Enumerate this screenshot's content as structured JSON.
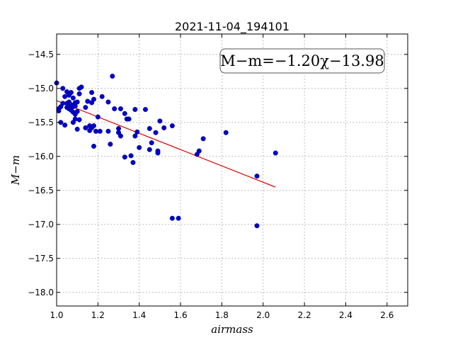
{
  "chart_data": {
    "type": "scatter",
    "title": "2021-11-04_194101",
    "xlabel": "airmass",
    "ylabel": "M−m",
    "xlim": [
      1.0,
      2.7
    ],
    "ylim": [
      -18.2,
      -14.2
    ],
    "y_inverted": true,
    "grid": true,
    "x_ticks": [
      1.0,
      1.2,
      1.4,
      1.6,
      1.8,
      2.0,
      2.2,
      2.4,
      2.6
    ],
    "x_tick_labels": [
      "1.0",
      "1.2",
      "1.4",
      "1.6",
      "1.8",
      "2.0",
      "2.2",
      "2.4",
      "2.6"
    ],
    "y_ticks": [
      -14.5,
      -15.0,
      -15.5,
      -16.0,
      -16.5,
      -17.0,
      -17.5,
      -18.0
    ],
    "y_tick_labels": [
      "−14.5",
      "−15.0",
      "−15.5",
      "−16.0",
      "−16.5",
      "−17.0",
      "−17.5",
      "−18.0"
    ],
    "annotation": "M−m=−1.20χ−13.98",
    "point_color": "#0000cc",
    "fit_color": "#dd0000",
    "points": {
      "x": [
        1.0,
        1.01,
        1.01,
        1.02,
        1.02,
        1.03,
        1.03,
        1.04,
        1.04,
        1.05,
        1.05,
        1.05,
        1.06,
        1.06,
        1.06,
        1.07,
        1.07,
        1.07,
        1.08,
        1.08,
        1.08,
        1.08,
        1.09,
        1.09,
        1.09,
        1.09,
        1.1,
        1.1,
        1.1,
        1.11,
        1.11,
        1.11,
        1.12,
        1.14,
        1.14,
        1.15,
        1.16,
        1.16,
        1.17,
        1.17,
        1.17,
        1.18,
        1.18,
        1.18,
        1.19,
        1.2,
        1.21,
        1.22,
        1.25,
        1.25,
        1.26,
        1.27,
        1.28,
        1.3,
        1.3,
        1.31,
        1.31,
        1.33,
        1.33,
        1.34,
        1.35,
        1.36,
        1.37,
        1.38,
        1.38,
        1.39,
        1.4,
        1.43,
        1.45,
        1.45,
        1.46,
        1.48,
        1.49,
        1.49,
        1.5,
        1.52,
        1.56,
        1.56,
        1.59,
        1.68,
        1.69,
        1.71,
        1.82,
        1.97,
        1.97,
        2.06
      ],
      "y": [
        -14.92,
        -15.3,
        -15.33,
        -15.27,
        -15.5,
        -15.0,
        -15.22,
        -15.12,
        -15.54,
        -15.05,
        -15.22,
        -15.28,
        -15.1,
        -15.2,
        -15.3,
        -15.06,
        -15.24,
        -15.32,
        -15.14,
        -15.27,
        -15.35,
        -15.5,
        -15.21,
        -15.26,
        -15.38,
        -15.45,
        -15.2,
        -15.34,
        -15.6,
        -15.0,
        -15.08,
        -15.46,
        -14.98,
        -15.28,
        -15.58,
        -15.19,
        -15.55,
        -15.62,
        -15.06,
        -15.21,
        -15.58,
        -15.16,
        -15.55,
        -15.85,
        -15.63,
        -15.42,
        -15.63,
        -15.12,
        -15.2,
        -15.63,
        -15.82,
        -14.82,
        -15.3,
        -15.59,
        -15.65,
        -15.3,
        -15.7,
        -15.37,
        -16.01,
        -15.45,
        -15.45,
        -15.99,
        -16.09,
        -15.31,
        -15.7,
        -15.64,
        -15.87,
        -15.31,
        -15.59,
        -15.9,
        -15.8,
        -15.65,
        -15.92,
        -15.95,
        -15.48,
        -15.58,
        -15.55,
        -16.91,
        -16.91,
        -15.97,
        -15.92,
        -15.74,
        -15.65,
        -17.02,
        -16.29,
        -15.95
      ]
    },
    "fit_line": {
      "slope": -1.2,
      "intercept": -13.98,
      "x_range": [
        1.0,
        2.06
      ]
    }
  }
}
